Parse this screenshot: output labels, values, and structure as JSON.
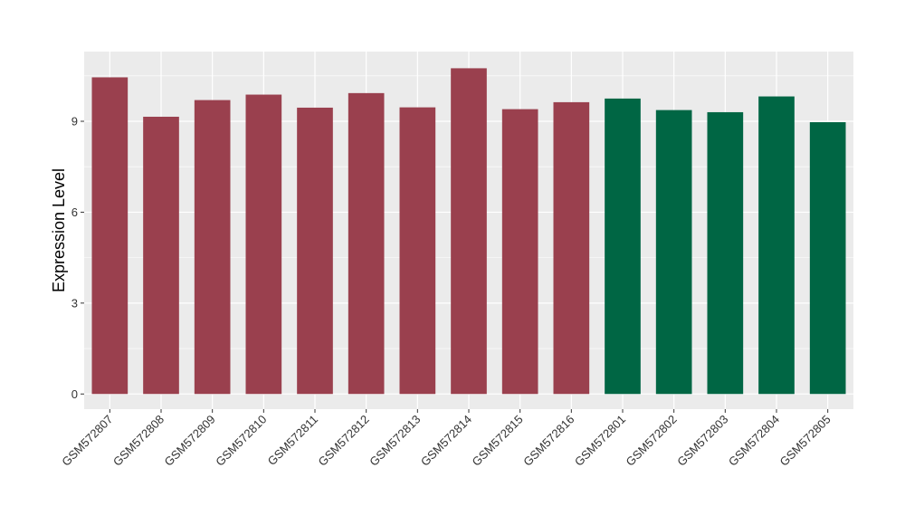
{
  "chart_data": {
    "type": "bar",
    "title": "",
    "xlabel": "",
    "ylabel": "Expression Level",
    "ylim": [
      -0.5,
      11.3
    ],
    "yticks": [
      0,
      3,
      6,
      9
    ],
    "grid": true,
    "categories": [
      "GSM572807",
      "GSM572808",
      "GSM572809",
      "GSM572810",
      "GSM572811",
      "GSM572812",
      "GSM572813",
      "GSM572814",
      "GSM572815",
      "GSM572816",
      "GSM572801",
      "GSM572802",
      "GSM572803",
      "GSM572804",
      "GSM572805"
    ],
    "values": [
      10.45,
      9.15,
      9.7,
      9.88,
      9.45,
      9.93,
      9.46,
      10.75,
      9.4,
      9.63,
      9.75,
      9.37,
      9.3,
      9.82,
      8.97
    ],
    "groups": [
      0,
      0,
      0,
      0,
      0,
      0,
      0,
      0,
      0,
      0,
      1,
      1,
      1,
      1,
      1
    ],
    "colors": [
      "#9a404e",
      "#006644"
    ],
    "panel_color": "#ebebeb",
    "grid_color": "#ffffff"
  }
}
